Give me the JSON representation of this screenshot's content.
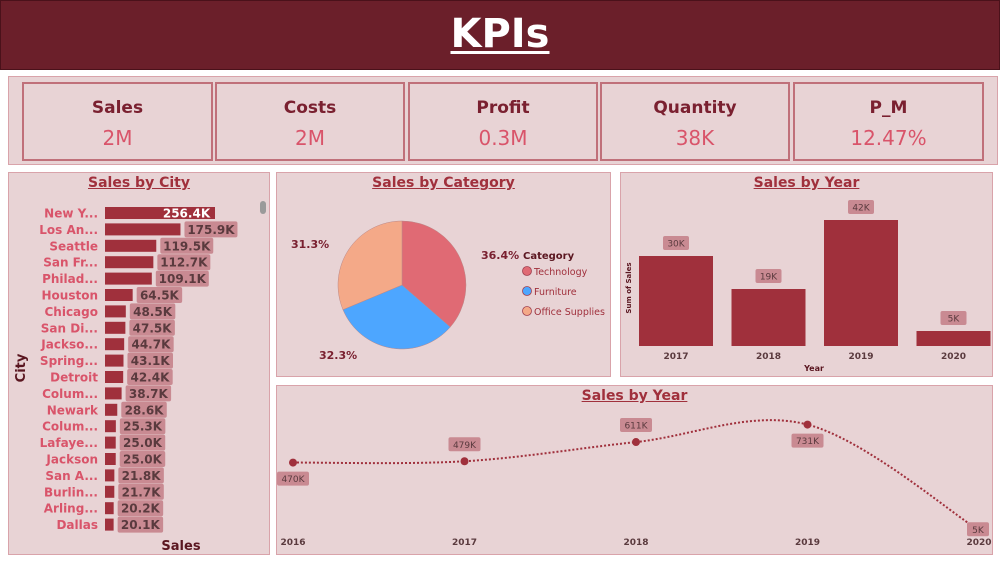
{
  "header": {
    "title": "KPIs"
  },
  "kpis": [
    {
      "label": "Sales",
      "value": "2M"
    },
    {
      "label": "Costs",
      "value": "2M"
    },
    {
      "label": "Profit",
      "value": "0.3M"
    },
    {
      "label": "Quantity",
      "value": "38K"
    },
    {
      "label": "P_M",
      "value": "12.47%"
    }
  ],
  "colors": {
    "header": "#6b1f2a",
    "panel": "#e8d3d5",
    "bar": "#a0303c",
    "technology": "#e06a74",
    "furniture": "#4da6ff",
    "office_supplies": "#f4a988"
  },
  "chart_data": [
    {
      "type": "bar",
      "orientation": "horizontal",
      "title": "Sales by City",
      "xlabel": "Sales",
      "ylabel": "City",
      "categories": [
        "New Y...",
        "Los An...",
        "Seattle",
        "San Fr...",
        "Philad...",
        "Houston",
        "Chicago",
        "San Di...",
        "Jackso...",
        "Spring...",
        "Detroit",
        "Colum...",
        "Newark",
        "Colum...",
        "Lafaye...",
        "Jackson",
        "San A...",
        "Burlin...",
        "Arling...",
        "Dallas"
      ],
      "values": [
        256.4,
        175.9,
        119.5,
        112.7,
        109.1,
        64.5,
        48.5,
        47.5,
        44.7,
        43.1,
        42.4,
        38.7,
        28.6,
        25.3,
        25.0,
        25.0,
        21.8,
        21.7,
        20.2,
        20.1
      ],
      "labels": [
        "256.4K",
        "175.9K",
        "119.5K",
        "112.7K",
        "109.1K",
        "64.5K",
        "48.5K",
        "47.5K",
        "44.7K",
        "43.1K",
        "42.4K",
        "38.7K",
        "28.6K",
        "25.3K",
        "25.0K",
        "25.0K",
        "21.8K",
        "21.7K",
        "20.2K",
        "20.1K"
      ]
    },
    {
      "type": "pie",
      "title": "Sales by Category",
      "legend_title": "Category",
      "legend_position": "right",
      "slices": [
        {
          "name": "Technology",
          "value": 36.4,
          "label": "36.4%"
        },
        {
          "name": "Furniture",
          "value": 32.3,
          "label": "32.3%"
        },
        {
          "name": "Office Supplies",
          "value": 31.3,
          "label": "31.3%"
        }
      ]
    },
    {
      "type": "bar",
      "title": "Sales by Year",
      "xlabel": "Year",
      "ylabel": "Sum of Sales",
      "categories": [
        "2017",
        "2018",
        "2019",
        "2020"
      ],
      "values": [
        30,
        19,
        42,
        5
      ],
      "labels": [
        "30K",
        "19K",
        "42K",
        "5K"
      ]
    },
    {
      "type": "line",
      "title": "Sales by Year",
      "categories": [
        "2016",
        "2017",
        "2018",
        "2019",
        "2020"
      ],
      "values": [
        470,
        479,
        611,
        731,
        5
      ],
      "labels": [
        "470K",
        "479K",
        "611K",
        "731K",
        "5K"
      ],
      "line_style": "dotted"
    }
  ]
}
